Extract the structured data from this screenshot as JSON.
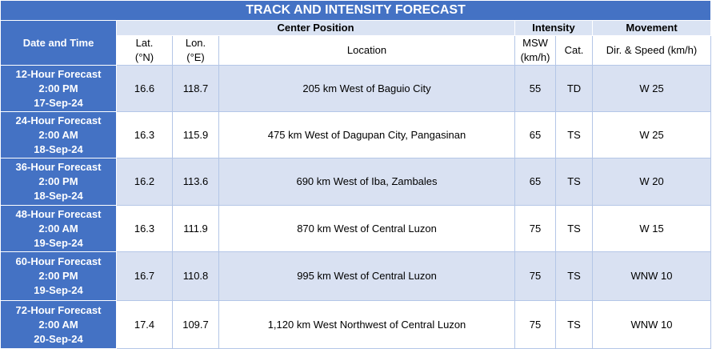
{
  "title": "TRACK AND INTENSITY FORECAST",
  "headers": {
    "date_time": "Date and Time",
    "center_position": "Center Position",
    "intensity": "Intensity",
    "movement": "Movement",
    "lat_line1": "Lat.",
    "lat_line2": "(°N)",
    "lon_line1": "Lon.",
    "lon_line2": "(°E)",
    "location": "Location",
    "msw_line1": "MSW",
    "msw_line2": "(km/h)",
    "cat": "Cat.",
    "dir_speed": "Dir. & Speed (km/h)"
  },
  "rows": [
    {
      "period": "12-Hour Forecast",
      "time": "2:00 PM",
      "date": "17-Sep-24",
      "lat": "16.6",
      "lon": "118.7",
      "location": "205 km West of Baguio City",
      "msw": "55",
      "cat": "TD",
      "movement": "W 25"
    },
    {
      "period": "24-Hour Forecast",
      "time": "2:00 AM",
      "date": "18-Sep-24",
      "lat": "16.3",
      "lon": "115.9",
      "location": "475 km West of Dagupan City, Pangasinan",
      "msw": "65",
      "cat": "TS",
      "movement": "W 25"
    },
    {
      "period": "36-Hour Forecast",
      "time": "2:00 PM",
      "date": "18-Sep-24",
      "lat": "16.2",
      "lon": "113.6",
      "location": "690 km West of Iba, Zambales",
      "msw": "65",
      "cat": "TS",
      "movement": "W 20"
    },
    {
      "period": "48-Hour Forecast",
      "time": "2:00 AM",
      "date": "19-Sep-24",
      "lat": "16.3",
      "lon": "111.9",
      "location": "870 km West of Central Luzon",
      "msw": "75",
      "cat": "TS",
      "movement": "W 15"
    },
    {
      "period": "60-Hour Forecast",
      "time": "2:00 PM",
      "date": "19-Sep-24",
      "lat": "16.7",
      "lon": "110.8",
      "location": "995 km West of Central Luzon",
      "msw": "75",
      "cat": "TS",
      "movement": "WNW 10"
    },
    {
      "period": "72-Hour Forecast",
      "time": "2:00 AM",
      "date": "20-Sep-24",
      "lat": "17.4",
      "lon": "109.7",
      "location": "1,120 km West Northwest of Central Luzon",
      "msw": "75",
      "cat": "TS",
      "movement": "WNW 10"
    }
  ],
  "colors": {
    "header_blue": "#4472c4",
    "band_light": "#d9e1f2",
    "subheader_light": "#dae3f3"
  }
}
